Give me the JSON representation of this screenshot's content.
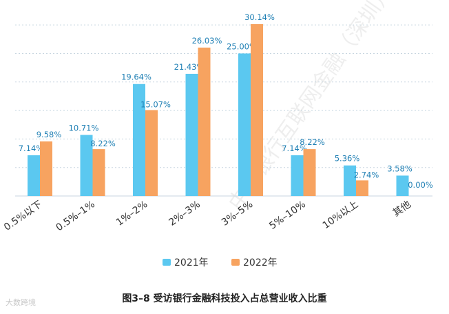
{
  "chart_data": {
    "type": "bar",
    "categories": [
      "0.5%以下",
      "0.5%–1%",
      "1%–2%",
      "2%–3%",
      "3%–5%",
      "5%–10%",
      "10%以上",
      "其他"
    ],
    "series": [
      {
        "name": "2021年",
        "values": [
          7.14,
          10.71,
          19.64,
          21.43,
          25.0,
          7.14,
          5.36,
          3.58
        ],
        "labels": [
          "7.14%",
          "10.71%",
          "19.64%",
          "21.43%",
          "25.00%",
          "7.14%",
          "5.36%",
          "3.58%"
        ]
      },
      {
        "name": "2022年",
        "values": [
          9.58,
          8.22,
          15.07,
          26.03,
          30.14,
          8.22,
          2.74,
          0.0
        ],
        "labels": [
          "9.58%",
          "8.22%",
          "15.07%",
          "26.03%",
          "30.14%",
          "8.22%",
          "2.74%",
          "0.00%"
        ]
      }
    ],
    "title": "图3–8  受访银行金融科技投入占总营业收入比重",
    "ylim": [
      0,
      32
    ],
    "grid": true,
    "legend": "bottom"
  },
  "colors": {
    "series_2021": "#5bc8f0",
    "series_2022": "#f7a360",
    "label_text": "#1e7fb4",
    "grid": "#c8d6e0",
    "axis": "#888888"
  },
  "watermark": {
    "main": "中小银行互联网金融（深圳）联盟",
    "corner": "大数跨境"
  }
}
